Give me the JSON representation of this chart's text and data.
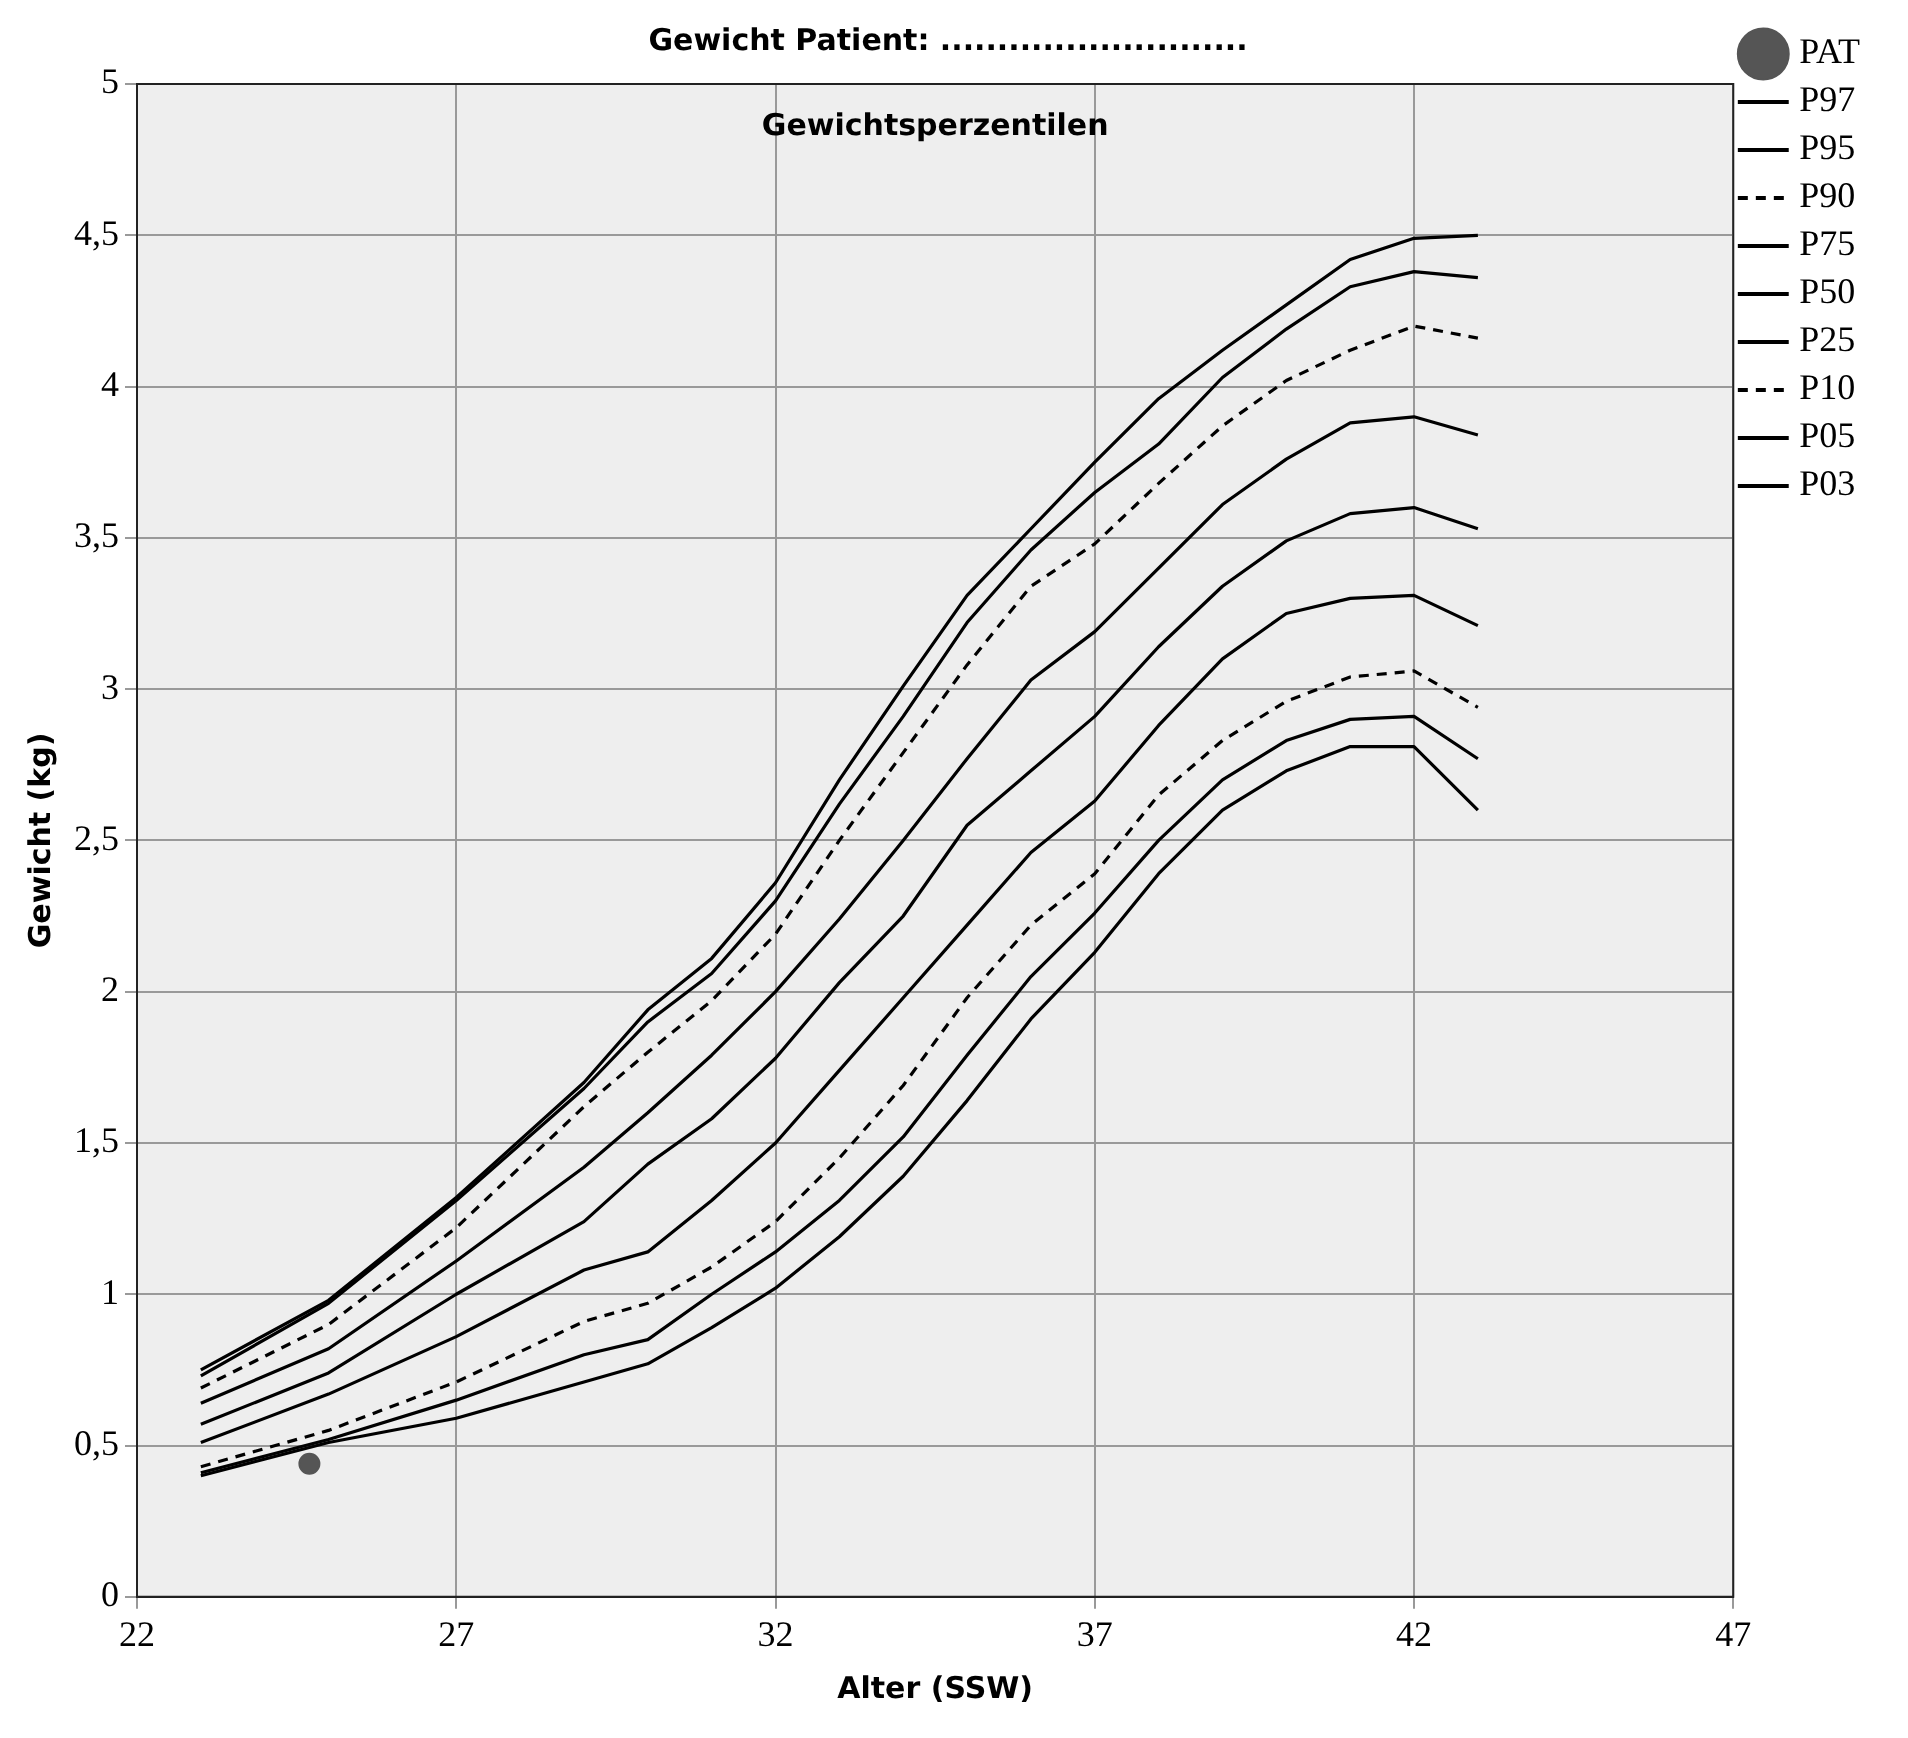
{
  "chart_data": {
    "type": "line",
    "title": "Gewicht Patient: ...........................",
    "subtitle": "Gewichtsperzentilen",
    "xlabel": "Alter (SSW)",
    "ylabel": "Gewicht (kg)",
    "x": [
      23,
      25,
      27,
      29,
      30,
      31,
      32,
      33,
      34,
      35,
      36,
      37,
      38,
      39,
      40,
      41,
      42,
      43
    ],
    "series": [
      {
        "name": "PAT",
        "type": "scatter",
        "marker": "circle",
        "color": "#555555",
        "x": [
          24.7
        ],
        "values": [
          0.44
        ]
      },
      {
        "name": "P97",
        "color": "#000000",
        "line_style": "solid",
        "values": [
          0.75,
          0.98,
          1.32,
          1.7,
          1.94,
          2.11,
          2.36,
          2.7,
          3.01,
          3.31,
          3.53,
          3.75,
          3.96,
          4.12,
          4.27,
          4.42,
          4.49,
          4.5
        ]
      },
      {
        "name": "P95",
        "color": "#000000",
        "line_style": "solid",
        "values": [
          0.73,
          0.97,
          1.31,
          1.68,
          1.9,
          2.06,
          2.3,
          2.62,
          2.91,
          3.22,
          3.46,
          3.65,
          3.81,
          4.03,
          4.19,
          4.33,
          4.38,
          4.36
        ]
      },
      {
        "name": "P90",
        "color": "#000000",
        "line_style": "dashed",
        "values": [
          0.69,
          0.9,
          1.22,
          1.62,
          1.8,
          1.97,
          2.19,
          2.5,
          2.79,
          3.08,
          3.34,
          3.48,
          3.68,
          3.87,
          4.02,
          4.12,
          4.2,
          4.16
        ]
      },
      {
        "name": "P75",
        "color": "#000000",
        "line_style": "solid",
        "values": [
          0.64,
          0.82,
          1.11,
          1.42,
          1.6,
          1.79,
          2.0,
          2.24,
          2.5,
          2.77,
          3.03,
          3.19,
          3.4,
          3.61,
          3.76,
          3.88,
          3.9,
          3.84
        ]
      },
      {
        "name": "P50",
        "color": "#000000",
        "line_style": "solid",
        "values": [
          0.57,
          0.74,
          1.0,
          1.24,
          1.43,
          1.58,
          1.78,
          2.03,
          2.25,
          2.55,
          2.73,
          2.91,
          3.14,
          3.34,
          3.49,
          3.58,
          3.6,
          3.53
        ]
      },
      {
        "name": "P25",
        "color": "#000000",
        "line_style": "solid",
        "values": [
          0.51,
          0.67,
          0.86,
          1.08,
          1.14,
          1.31,
          1.5,
          1.74,
          1.98,
          2.22,
          2.46,
          2.63,
          2.88,
          3.1,
          3.25,
          3.3,
          3.31,
          3.21
        ]
      },
      {
        "name": "P10",
        "color": "#000000",
        "line_style": "dashed",
        "values": [
          0.43,
          0.55,
          0.71,
          0.91,
          0.97,
          1.09,
          1.24,
          1.45,
          1.69,
          1.98,
          2.22,
          2.39,
          2.65,
          2.83,
          2.96,
          3.04,
          3.06,
          2.94
        ]
      },
      {
        "name": "P05",
        "color": "#000000",
        "line_style": "solid",
        "values": [
          0.41,
          0.52,
          0.65,
          0.8,
          0.85,
          1.0,
          1.14,
          1.31,
          1.52,
          1.79,
          2.05,
          2.26,
          2.5,
          2.7,
          2.83,
          2.9,
          2.91,
          2.77
        ]
      },
      {
        "name": "P03",
        "color": "#000000",
        "line_style": "solid",
        "values": [
          0.4,
          0.51,
          0.59,
          0.71,
          0.77,
          0.89,
          1.02,
          1.19,
          1.39,
          1.64,
          1.91,
          2.13,
          2.39,
          2.6,
          2.73,
          2.81,
          2.81,
          2.6
        ]
      }
    ],
    "marker": "none",
    "xlim": [
      22,
      47
    ],
    "xticks": [
      22,
      27,
      32,
      37,
      42,
      47
    ],
    "ylim": [
      0,
      5
    ],
    "yticks": [
      0,
      {
        "value": 0.5,
        "label": "0,5"
      },
      1,
      {
        "value": 1.5,
        "label": "1,5"
      },
      2,
      {
        "value": 2.5,
        "label": "2,5"
      },
      3,
      {
        "value": 3.5,
        "label": "3,5"
      },
      4,
      {
        "value": 4.5,
        "label": "4,5"
      },
      5
    ],
    "grid": true,
    "legend": "top right"
  }
}
